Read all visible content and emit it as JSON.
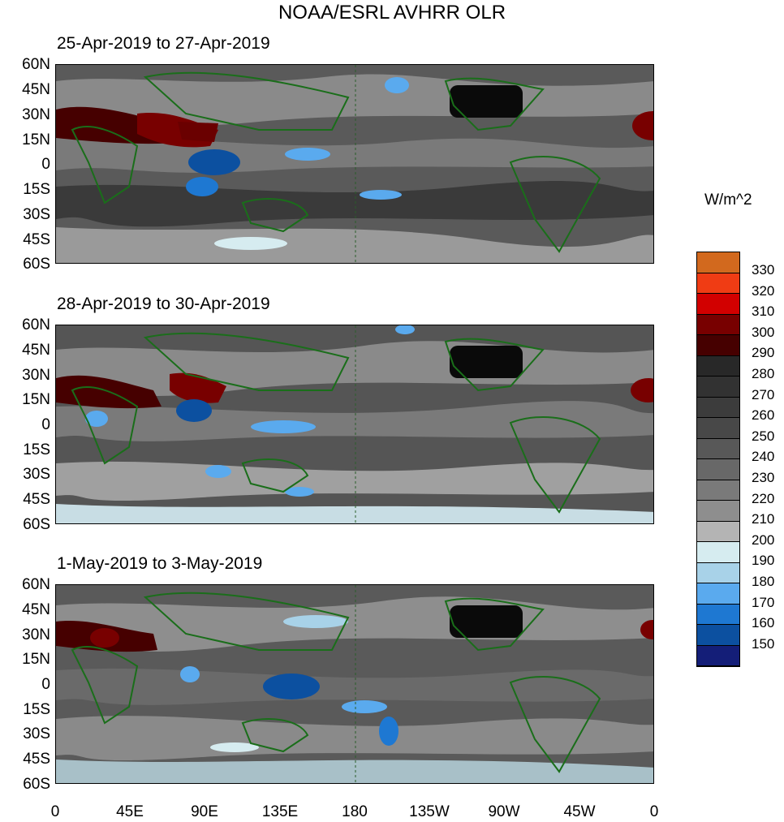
{
  "title": "NOAA/ESRL AVHRR OLR",
  "panels": [
    {
      "title": "25-Apr-2019 to 27-Apr-2019"
    },
    {
      "title": "28-Apr-2019 to 30-Apr-2019"
    },
    {
      "title": "1-May-2019 to 3-May-2019"
    }
  ],
  "lat_labels": [
    "60N",
    "45N",
    "30N",
    "15N",
    "0",
    "15S",
    "30S",
    "45S",
    "60S"
  ],
  "lon_labels": [
    "0",
    "45E",
    "90E",
    "135E",
    "180",
    "135W",
    "90W",
    "45W",
    "0"
  ],
  "colorbar": {
    "units": "W/m^2",
    "levels": [
      "330",
      "320",
      "310",
      "300",
      "290",
      "280",
      "270",
      "260",
      "250",
      "240",
      "230",
      "220",
      "210",
      "200",
      "190",
      "180",
      "170",
      "160",
      "150"
    ],
    "colors": [
      "#d2691e",
      "#f03c14",
      "#d20000",
      "#780000",
      "#460000",
      "#282828",
      "#323232",
      "#3c3c3c",
      "#484848",
      "#585858",
      "#686868",
      "#7a7a7a",
      "#8e8e8e",
      "#b4b4b4",
      "#d6ecf0",
      "#a8d2e8",
      "#5aaaee",
      "#1e78d2",
      "#0c50a0",
      "#141e78"
    ]
  },
  "map_colors": {
    "land_outline": "#1a6e1a",
    "dateline": "#2a5e2a",
    "background": "#555555"
  }
}
